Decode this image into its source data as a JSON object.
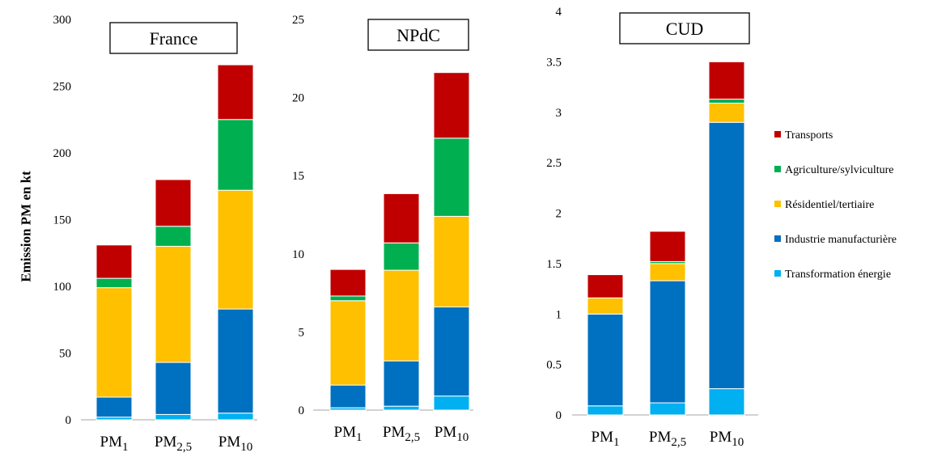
{
  "ylabel": "Emission PM en  kt",
  "legend": [
    {
      "label": "Transports",
      "color": "#c00000"
    },
    {
      "label": "Agriculture/sylviculture",
      "color": "#00b050"
    },
    {
      "label": "Résidentiel/tertiaire",
      "color": "#ffc000"
    },
    {
      "label": "Industrie manufacturière",
      "color": "#0070c0"
    },
    {
      "label": "Transformation énergie",
      "color": "#00b0f0"
    }
  ],
  "chart_data": [
    {
      "type": "bar",
      "stacked": true,
      "title": "France",
      "categories": [
        {
          "base": "PM",
          "sub": "1"
        },
        {
          "base": "PM",
          "sub": "2,5"
        },
        {
          "base": "PM",
          "sub": "10"
        }
      ],
      "ylim": [
        0,
        300
      ],
      "yticks": [
        "0",
        "50",
        "100",
        "150",
        "200",
        "250",
        "300"
      ],
      "series": [
        {
          "name": "Transformation énergie",
          "values": [
            2,
            4,
            5
          ]
        },
        {
          "name": "Industrie manufacturière",
          "values": [
            15,
            39,
            78
          ]
        },
        {
          "name": "Résidentiel/tertiaire",
          "values": [
            82,
            87,
            89
          ]
        },
        {
          "name": "Agriculture/sylviculture",
          "values": [
            7,
            15,
            53
          ]
        },
        {
          "name": "Transports",
          "values": [
            25,
            35,
            41
          ]
        }
      ]
    },
    {
      "type": "bar",
      "stacked": true,
      "title": "NPdC",
      "categories": [
        {
          "base": "PM",
          "sub": "1"
        },
        {
          "base": "PM",
          "sub": "2,5"
        },
        {
          "base": "PM",
          "sub": "10"
        }
      ],
      "ylim": [
        0,
        25
      ],
      "yticks": [
        "0",
        "5",
        "10",
        "15",
        "20",
        "25"
      ],
      "series": [
        {
          "name": "Transformation énergie",
          "values": [
            0.15,
            0.25,
            0.9
          ]
        },
        {
          "name": "Industrie manufacturière",
          "values": [
            1.45,
            2.9,
            5.7
          ]
        },
        {
          "name": "Résidentiel/tertiaire",
          "values": [
            5.4,
            5.8,
            5.8
          ]
        },
        {
          "name": "Agriculture/sylviculture",
          "values": [
            0.3,
            1.75,
            5.0
          ]
        },
        {
          "name": "Transports",
          "values": [
            1.7,
            3.15,
            4.2
          ]
        }
      ]
    },
    {
      "type": "bar",
      "stacked": true,
      "title": "CUD",
      "categories": [
        {
          "base": "PM",
          "sub": "1"
        },
        {
          "base": "PM",
          "sub": "2,5"
        },
        {
          "base": "PM",
          "sub": "10"
        }
      ],
      "ylim": [
        0,
        4
      ],
      "yticks": [
        "0",
        "0.5",
        "1",
        "1.5",
        "2",
        "2.5",
        "3",
        "3.5",
        "4"
      ],
      "series": [
        {
          "name": "Transformation énergie",
          "values": [
            0.09,
            0.12,
            0.26
          ]
        },
        {
          "name": "Industrie manufacturière",
          "values": [
            0.91,
            1.21,
            2.64
          ]
        },
        {
          "name": "Résidentiel/tertiaire",
          "values": [
            0.16,
            0.17,
            0.19
          ]
        },
        {
          "name": "Agriculture/sylviculture",
          "values": [
            0.0,
            0.02,
            0.04
          ]
        },
        {
          "name": "Transports",
          "values": [
            0.23,
            0.3,
            0.37
          ]
        }
      ]
    }
  ]
}
